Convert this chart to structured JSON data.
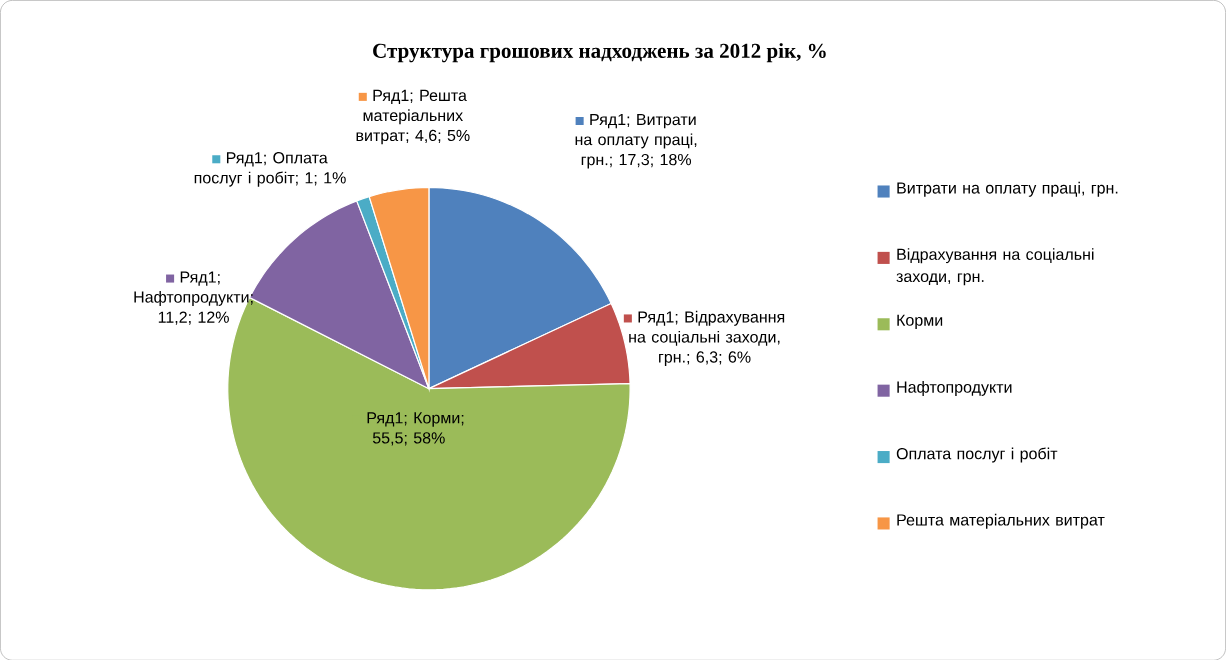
{
  "chart_data": {
    "type": "pie",
    "title": "Структура грошових надходжень за 2012 рік, %",
    "categories": [
      "Витрати на оплату праці, грн.",
      "Відрахування на соціальні заходи, грн.",
      "Корми",
      "Нафтопродукти",
      "Оплата послуг і робіт",
      "Решта матеріальних витрат"
    ],
    "values": [
      17.3,
      6.3,
      55.5,
      11.2,
      1,
      4.6
    ],
    "colors": [
      "#4f81bd",
      "#c0504d",
      "#9bbb59",
      "#8064a2",
      "#4bacc6",
      "#f79646"
    ],
    "value_labels": [
      "Ряд1; Витрати на оплату праці, грн.; 17,3; 18%",
      "Ряд1; Відрахування на соціальні заходи, грн.; 6,3; 6%",
      "Ряд1; Корми; 55,5; 58%",
      "Ряд1; Нафтопродукти; 11,2; 12%",
      "Ряд1; Оплата послуг і робіт; 1; 1%",
      "Ряд1; Решта матеріальних витрат; 4,6; 5%"
    ],
    "legend": "right"
  }
}
